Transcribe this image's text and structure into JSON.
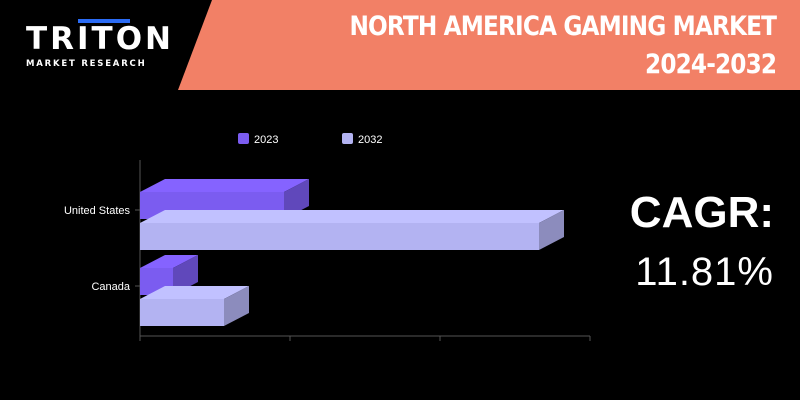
{
  "brand": {
    "logo_text": "TRITON",
    "logo_subtext": "MARKET RESEARCH"
  },
  "header": {
    "title_line1": "NORTH AMERICA GAMING MARKET",
    "title_line2": "2024-2032",
    "banner_color": "#f28066"
  },
  "cagr": {
    "label": "CAGR:",
    "value": "11.81%"
  },
  "chart_data": {
    "type": "bar",
    "orientation": "horizontal",
    "style": "3d",
    "categories": [
      "United States",
      "Canada"
    ],
    "series": [
      {
        "name": "2023",
        "color": "#7b5cf0",
        "values": [
          4.8,
          1.1
        ]
      },
      {
        "name": "2032",
        "color": "#b3b3f2",
        "values": [
          13.3,
          2.8
        ]
      }
    ],
    "xlim": [
      0,
      15
    ],
    "legend_position": "top",
    "grid": false,
    "xlabel": "",
    "ylabel": ""
  }
}
